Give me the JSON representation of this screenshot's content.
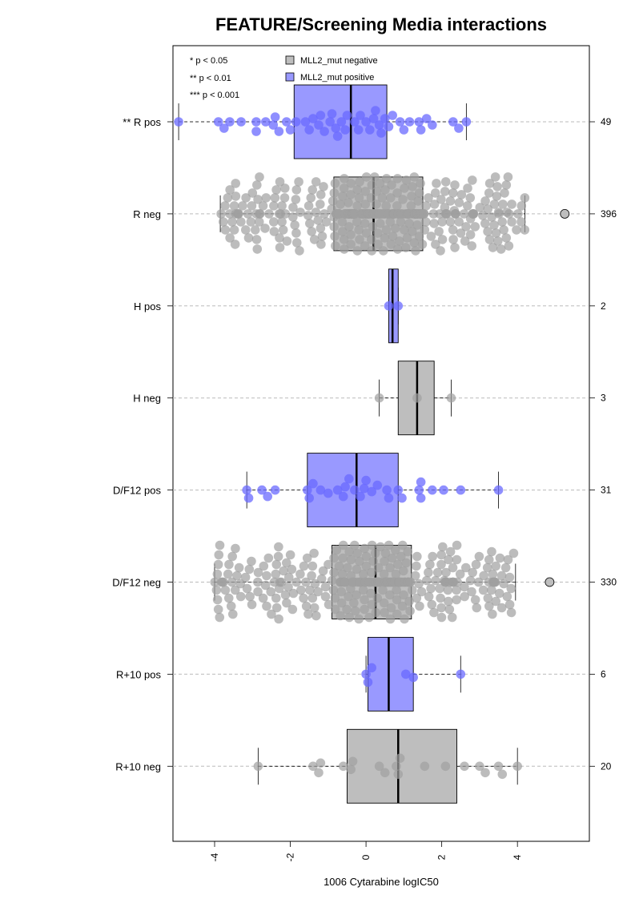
{
  "chart_data": {
    "type": "box",
    "title": "FEATURE/Screening Media interactions",
    "xlabel": "1006 Cytarabine logIC50",
    "ylabel": "",
    "xlim": [
      -5.1,
      5.9
    ],
    "x_ticks": [
      -4,
      -2,
      0,
      2,
      4
    ],
    "x_tick_labels": [
      "-4",
      "-2",
      "0",
      "2",
      "4"
    ],
    "grid": "dashed horizontal line per group",
    "significance_legend": [
      "* p < 0.05",
      "** p < 0.01",
      "*** p < 0.001"
    ],
    "legend": {
      "position": "top",
      "entries": [
        {
          "label": "MLL2_mut negative",
          "color": "#bebebe"
        },
        {
          "label": "MLL2_mut positive",
          "color": "#9999ff"
        }
      ]
    },
    "colors": {
      "negative_box": "#bebebe",
      "positive_box": "#9999ff",
      "negative_point": "#a0a0a0",
      "positive_point": "#6a6aff"
    },
    "groups": [
      {
        "label": "** R pos",
        "n_label": "49",
        "status": "positive",
        "whisker_low": -4.95,
        "q1": -1.9,
        "median": -0.4,
        "q3": 0.55,
        "whisker_high": 2.65,
        "outliers": [],
        "points": [
          -4.95,
          -3.9,
          -3.6,
          -3.3,
          -2.9,
          -2.65,
          -2.45,
          -2.3,
          -2.0,
          -1.85,
          -1.6,
          -1.4,
          -1.25,
          -1.1,
          -0.95,
          -0.8,
          -0.65,
          -0.5,
          -0.3,
          -0.15,
          0.0,
          0.1,
          0.25,
          0.4,
          0.5,
          0.6,
          0.9,
          1.15,
          1.4,
          1.6,
          1.75,
          2.3,
          2.45,
          2.65,
          -2.9,
          -2.4,
          -1.5,
          -0.9,
          -0.2,
          0.35,
          1.0,
          -1.2,
          -0.55,
          0.2,
          -3.75,
          -2.1,
          0.7,
          1.45,
          -0.75
        ]
      },
      {
        "label": "R neg",
        "n_label": "396",
        "status": "negative",
        "whisker_low": -3.85,
        "q1": -0.85,
        "median": 0.2,
        "q3": 1.5,
        "whisker_high": 4.2,
        "outliers": [
          5.25
        ]
      },
      {
        "label": "H pos",
        "n_label": "2",
        "status": "positive",
        "whisker_low": 0.6,
        "q1": 0.6,
        "median": 0.7,
        "q3": 0.85,
        "whisker_high": 0.85,
        "outliers": [],
        "points": [
          0.6,
          0.85
        ]
      },
      {
        "label": "H neg",
        "n_label": "3",
        "status": "negative",
        "whisker_low": 0.35,
        "q1": 0.85,
        "median": 1.35,
        "q3": 1.8,
        "whisker_high": 2.25,
        "outliers": [],
        "points": [
          0.35,
          1.35,
          2.25
        ]
      },
      {
        "label": "D/F12 pos",
        "n_label": "31",
        "status": "positive",
        "whisker_low": -3.15,
        "q1": -1.55,
        "median": -0.25,
        "q3": 0.85,
        "whisker_high": 3.5,
        "outliers": [],
        "points": [
          -3.15,
          -3.1,
          -2.75,
          -2.4,
          -1.55,
          -1.4,
          -1.2,
          -1.0,
          -0.75,
          -0.6,
          -0.45,
          -0.3,
          -0.15,
          0.0,
          0.15,
          0.55,
          0.6,
          0.85,
          0.95,
          1.4,
          1.45,
          1.75,
          2.05,
          2.5,
          3.5,
          -1.5,
          -0.55,
          -0.05,
          1.45,
          -2.6,
          0.3
        ]
      },
      {
        "label": "D/F12 neg",
        "n_label": "330",
        "status": "negative",
        "whisker_low": -4.0,
        "q1": -0.9,
        "median": 0.25,
        "q3": 1.2,
        "whisker_high": 3.95,
        "outliers": [
          4.85
        ]
      },
      {
        "label": "R+10 pos",
        "n_label": "6",
        "status": "positive",
        "whisker_low": 0.0,
        "q1": 0.05,
        "median": 0.6,
        "q3": 1.25,
        "whisker_high": 2.5,
        "outliers": [],
        "points": [
          0.0,
          0.05,
          0.15,
          1.05,
          1.25,
          2.5
        ]
      },
      {
        "label": "R+10 neg",
        "n_label": "20",
        "status": "negative",
        "whisker_low": -2.85,
        "q1": -0.5,
        "median": 0.85,
        "q3": 2.4,
        "whisker_high": 4.0,
        "outliers": [],
        "points": [
          -2.85,
          -1.4,
          -1.25,
          -1.2,
          -0.6,
          -0.4,
          -0.35,
          0.35,
          0.5,
          0.8,
          0.85,
          0.9,
          1.55,
          2.1,
          2.6,
          3.0,
          3.15,
          3.5,
          3.6,
          4.0
        ]
      }
    ]
  }
}
